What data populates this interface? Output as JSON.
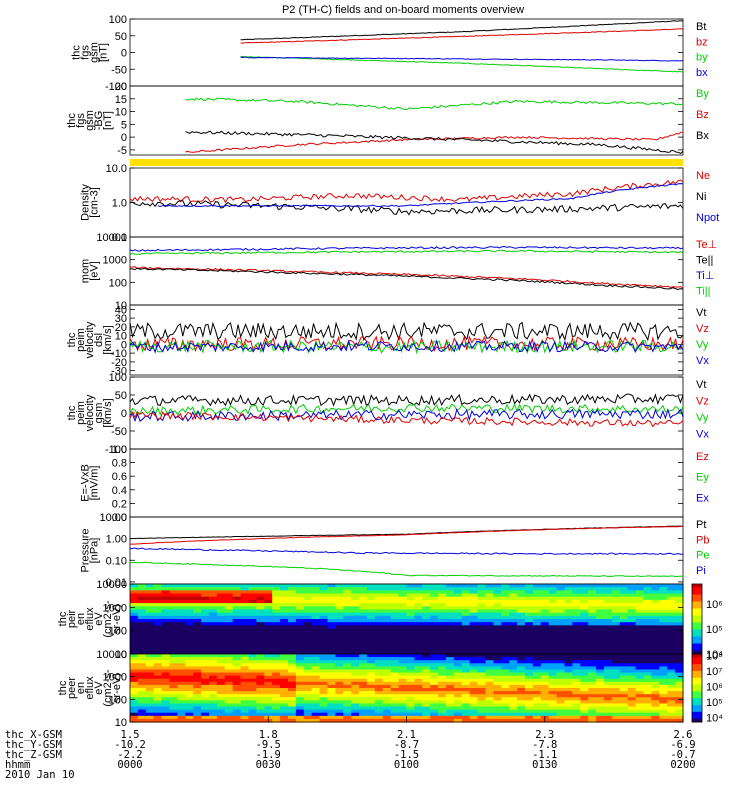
{
  "title": "P2 (TH-C) fields and on-board moments overview",
  "date_label": "2010 Jan 10",
  "ephemeris": {
    "labels": [
      "thc_X-GSM",
      "thc_Y-GSM",
      "thc_Z-GSM",
      "hhmm"
    ],
    "columns": [
      [
        "1.5",
        "-10.2",
        "-2.2",
        "0000"
      ],
      [
        "1.8",
        "-9.5",
        "-1.9",
        "0030"
      ],
      [
        "2.1",
        "-8.7",
        "-1.5",
        "0100"
      ],
      [
        "2.3",
        "-7.8",
        "-1.1",
        "0130"
      ],
      [
        "2.6",
        "-6.9",
        "-0.7",
        "0200"
      ]
    ]
  },
  "colors": {
    "black": "#000000",
    "red": "#e00000",
    "green": "#00d000",
    "blue": "#0000e0",
    "yellow": "#ffe000"
  },
  "chart_data": [
    {
      "type": "line",
      "ylabel": [
        "thc",
        "fgs",
        "gsm",
        "[nT]"
      ],
      "yticks": [
        "100",
        "50",
        "0",
        "-50",
        "-100"
      ],
      "ylim": [
        -100,
        100
      ],
      "log": false,
      "legend": [
        {
          "name": "Bt",
          "color": "black"
        },
        {
          "name": "bz",
          "color": "red"
        },
        {
          "name": "by",
          "color": "green"
        },
        {
          "name": "bx",
          "color": "blue"
        }
      ],
      "series": [
        {
          "name": "Bt",
          "color": "black",
          "x": [
            0.2,
            0.6,
            1.0
          ],
          "values": [
            38,
            62,
            95
          ],
          "noise": 1
        },
        {
          "name": "bz",
          "color": "red",
          "x": [
            0.2,
            0.6,
            1.0
          ],
          "values": [
            28,
            48,
            70
          ],
          "noise": 1
        },
        {
          "name": "by",
          "color": "green",
          "x": [
            0.2,
            0.6,
            1.0
          ],
          "values": [
            -12,
            -32,
            -58
          ],
          "noise": 1
        },
        {
          "name": "bx",
          "color": "blue",
          "x": [
            0.2,
            0.5,
            0.85,
            1.0
          ],
          "values": [
            -15,
            -18,
            -22,
            -25
          ],
          "noise": 1
        }
      ]
    },
    {
      "type": "line",
      "ylabel": [
        "thc",
        "fgs",
        "gsm",
        "-BG",
        "[nT]"
      ],
      "yticks": [
        "20",
        "15",
        "10",
        "5",
        "0",
        "-5"
      ],
      "ylim": [
        -7,
        20
      ],
      "log": false,
      "legend": [
        {
          "name": "By",
          "color": "green"
        },
        {
          "name": "Bz",
          "color": "red"
        },
        {
          "name": "Bx",
          "color": "black"
        }
      ],
      "series": [
        {
          "name": "By",
          "color": "green",
          "x": [
            0.1,
            0.3,
            0.5,
            0.7,
            1.0
          ],
          "values": [
            15,
            14,
            11,
            14,
            13
          ],
          "noise": 0.5
        },
        {
          "name": "Bz",
          "color": "red",
          "x": [
            0.1,
            0.3,
            0.5,
            0.7,
            0.95,
            1.0
          ],
          "values": [
            -6,
            -3,
            -1,
            0,
            -1,
            2
          ],
          "noise": 0.4
        },
        {
          "name": "Bx",
          "color": "black",
          "x": [
            0.1,
            0.3,
            0.6,
            0.85,
            1.0
          ],
          "values": [
            2,
            1,
            -1,
            -3,
            -6
          ],
          "noise": 0.6
        }
      ]
    },
    {
      "type": "band",
      "color": "yellow"
    },
    {
      "type": "line",
      "ylabel": [
        "Density",
        "[cm-3]"
      ],
      "yticks": [
        "10.0",
        "1.0",
        "0.1"
      ],
      "ylim": [
        0.1,
        10
      ],
      "log": true,
      "legend": [
        {
          "name": "Ne",
          "color": "red"
        },
        {
          "name": "Ni",
          "color": "black"
        },
        {
          "name": "Npot",
          "color": "blue"
        }
      ],
      "series": [
        {
          "name": "Ne",
          "color": "red",
          "x": [
            0.0,
            0.2,
            0.4,
            0.6,
            0.8,
            1.0
          ],
          "values": [
            1.3,
            1.2,
            1.6,
            1.2,
            1.8,
            4.0
          ],
          "noise": 0.08
        },
        {
          "name": "Ni",
          "color": "black",
          "x": [
            0.0,
            0.3,
            0.5,
            0.8,
            1.0
          ],
          "values": [
            1.0,
            0.75,
            0.55,
            0.65,
            0.8
          ],
          "noise": 0.1
        },
        {
          "name": "Npot",
          "color": "blue",
          "x": [
            0.05,
            0.5,
            0.8,
            1.0
          ],
          "values": [
            0.8,
            0.8,
            1.3,
            3.5
          ],
          "noise": 0.02
        }
      ]
    },
    {
      "type": "line",
      "ylabel": [
        "mom",
        "[eV]"
      ],
      "yticks": [
        "10000",
        "1000",
        "100",
        "10"
      ],
      "ylim": [
        10,
        10000
      ],
      "log": true,
      "legend": [
        {
          "name": "Te⊥",
          "color": "red"
        },
        {
          "name": "Te||",
          "color": "black"
        },
        {
          "name": "Ti⊥",
          "color": "blue"
        },
        {
          "name": "Ti||",
          "color": "green"
        }
      ],
      "series": [
        {
          "name": "Ti⊥",
          "color": "blue",
          "x": [
            0.0,
            0.4,
            0.7,
            1.0
          ],
          "values": [
            2500,
            3200,
            3500,
            3200
          ],
          "noise": 0.04
        },
        {
          "name": "Ti||",
          "color": "green",
          "x": [
            0.0,
            0.4,
            0.7,
            1.0
          ],
          "values": [
            1800,
            2200,
            2400,
            2100
          ],
          "noise": 0.04
        },
        {
          "name": "Te⊥",
          "color": "red",
          "x": [
            0.0,
            0.3,
            0.6,
            0.85,
            1.0
          ],
          "values": [
            450,
            300,
            180,
            90,
            60
          ],
          "noise": 0.04
        },
        {
          "name": "Te||",
          "color": "black",
          "x": [
            0.0,
            0.3,
            0.6,
            0.85,
            1.0
          ],
          "values": [
            400,
            260,
            150,
            75,
            50
          ],
          "noise": 0.04
        }
      ]
    },
    {
      "type": "line",
      "ylabel": [
        "thc",
        "peim",
        "velocity",
        "dsl",
        "[km/s]"
      ],
      "yticks": [
        "40",
        "30",
        "20",
        "10",
        "0",
        "-10",
        "-20",
        "-30"
      ],
      "ylim": [
        -35,
        45
      ],
      "log": false,
      "legend": [
        {
          "name": "Vt",
          "color": "black"
        },
        {
          "name": "Vz",
          "color": "red"
        },
        {
          "name": "Vy",
          "color": "green"
        },
        {
          "name": "Vx",
          "color": "blue"
        }
      ],
      "series": [
        {
          "name": "Vt",
          "color": "black",
          "x": [
            0.0,
            0.5,
            1.0
          ],
          "values": [
            15,
            15,
            15
          ],
          "noise": 10
        },
        {
          "name": "Vz",
          "color": "red",
          "x": [
            0.0,
            0.5,
            1.0
          ],
          "values": [
            0,
            1,
            0
          ],
          "noise": 8
        },
        {
          "name": "Vy",
          "color": "green",
          "x": [
            0.0,
            0.5,
            1.0
          ],
          "values": [
            -2,
            -3,
            -2
          ],
          "noise": 7
        },
        {
          "name": "Vx",
          "color": "blue",
          "x": [
            0.0,
            0.5,
            1.0
          ],
          "values": [
            -3,
            -2,
            -3
          ],
          "noise": 6
        }
      ]
    },
    {
      "type": "line",
      "ylabel": [
        "thc",
        "peim",
        "velocity",
        "gsm",
        "[km/s]"
      ],
      "yticks": [
        "100",
        "50",
        "0",
        "-50",
        "-100"
      ],
      "ylim": [
        -100,
        100
      ],
      "log": false,
      "legend": [
        {
          "name": "Vt",
          "color": "black"
        },
        {
          "name": "Vz",
          "color": "red"
        },
        {
          "name": "Vy",
          "color": "green"
        },
        {
          "name": "Vx",
          "color": "blue"
        }
      ],
      "series": [
        {
          "name": "Vt",
          "color": "black",
          "x": [
            0.0,
            0.5,
            1.0
          ],
          "values": [
            35,
            35,
            40
          ],
          "noise": 14
        },
        {
          "name": "Vy",
          "color": "green",
          "x": [
            0.0,
            0.5,
            1.0
          ],
          "values": [
            5,
            15,
            10
          ],
          "noise": 12
        },
        {
          "name": "Vx",
          "color": "blue",
          "x": [
            0.0,
            0.5,
            1.0
          ],
          "values": [
            -10,
            -5,
            -2
          ],
          "noise": 14
        },
        {
          "name": "Vz",
          "color": "red",
          "x": [
            0.0,
            0.5,
            1.0
          ],
          "values": [
            -5,
            -20,
            -30
          ],
          "noise": 10
        }
      ]
    },
    {
      "type": "line",
      "ylabel": [
        "E=-VxB",
        "[mV/m]"
      ],
      "yticks": [
        "1.0",
        "0.8",
        "0.6",
        "0.4",
        "0.2",
        "0.0"
      ],
      "ylim": [
        0,
        1
      ],
      "log": false,
      "legend": [
        {
          "name": "Ez",
          "color": "red"
        },
        {
          "name": "Ey",
          "color": "green"
        },
        {
          "name": "Ex",
          "color": "blue"
        }
      ],
      "series": []
    },
    {
      "type": "line",
      "ylabel": [
        "Pressure",
        "[nPa]"
      ],
      "yticks": [
        "10.00",
        "1.00",
        "0.10",
        "0.01"
      ],
      "ylim": [
        0.008,
        10
      ],
      "log": true,
      "legend": [
        {
          "name": "Pt",
          "color": "black"
        },
        {
          "name": "Pb",
          "color": "red"
        },
        {
          "name": "Pe",
          "color": "green"
        },
        {
          "name": "Pi",
          "color": "blue"
        }
      ],
      "series": [
        {
          "name": "Pt",
          "color": "black",
          "x": [
            0.0,
            0.5,
            1.0
          ],
          "values": [
            1.0,
            1.6,
            3.8
          ],
          "noise": 0.01
        },
        {
          "name": "Pb",
          "color": "red",
          "x": [
            0.0,
            0.5,
            1.0
          ],
          "values": [
            0.55,
            1.5,
            3.7
          ],
          "noise": 0.01
        },
        {
          "name": "Pi",
          "color": "blue",
          "x": [
            0.0,
            0.4,
            0.7,
            1.0
          ],
          "values": [
            0.35,
            0.22,
            0.2,
            0.2
          ],
          "noise": 0.03
        },
        {
          "name": "Pe",
          "color": "green",
          "x": [
            0.0,
            0.35,
            0.5,
            1.0
          ],
          "values": [
            0.08,
            0.04,
            0.02,
            0.018
          ],
          "noise": 0.02
        }
      ]
    },
    {
      "type": "heatmap",
      "ylabel": [
        "thc",
        "peir",
        "en",
        "eflux",
        "eV",
        "(cm2-s-",
        "sr-eV)"
      ],
      "yticks": [
        "10000",
        "1000",
        "100",
        "10"
      ],
      "ylim": [
        10,
        10000
      ],
      "log": true,
      "colorbar": {
        "ticks": [
          "10⁶",
          "10⁵",
          "10⁴"
        ],
        "range": [
          4,
          6.8
        ]
      },
      "profile": "ion"
    },
    {
      "type": "heatmap",
      "ylabel": [
        "thc",
        "peer",
        "en",
        "eflux",
        "eV",
        "(cm2-s-",
        "sr-eV)"
      ],
      "yticks": [
        "10000",
        "1000",
        "100",
        "10"
      ],
      "ylim": [
        10,
        10000
      ],
      "log": true,
      "colorbar": {
        "ticks": [
          "10⁸",
          "10⁷",
          "10⁶",
          "10⁵",
          "10⁴"
        ],
        "range": [
          3.7,
          8.1
        ]
      },
      "profile": "electron"
    }
  ]
}
